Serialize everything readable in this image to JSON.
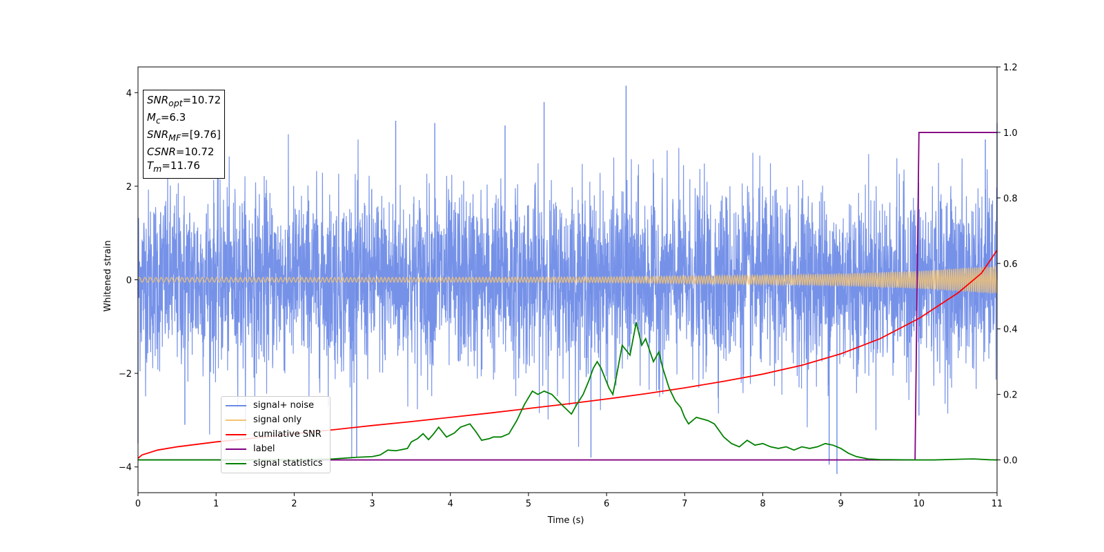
{
  "chart_data": {
    "type": "line",
    "xlabel": "Time (s)",
    "ylabel": "Whitened strain",
    "xlim": [
      0,
      11
    ],
    "ylim": [
      -4.55,
      4.55
    ],
    "y2lim": [
      -0.1,
      1.2
    ],
    "x_ticks": [
      "0",
      "1",
      "2",
      "3",
      "4",
      "5",
      "6",
      "7",
      "8",
      "9",
      "10",
      "11"
    ],
    "y_ticks": [
      "−4",
      "−2",
      "0",
      "2",
      "4"
    ],
    "y_tick_values": [
      -4,
      -2,
      0,
      2,
      4
    ],
    "y2_ticks": [
      "0.0",
      "0.2",
      "0.4",
      "0.6",
      "0.8",
      "1.0",
      "1.2"
    ],
    "y2_tick_values": [
      0.0,
      0.2,
      0.4,
      0.6,
      0.8,
      1.0,
      1.2
    ],
    "grid": false,
    "legend_position": "lower-left",
    "info_box": {
      "snr_opt_sub": "opt",
      "snr_opt_val": "=10.72",
      "mc_sub": "c",
      "mc_val": "=6.3",
      "snr_mf_sub": "MF",
      "snr_mf_val": "=[9.76]",
      "csnr_val": "=10.72",
      "tm_sub": "m",
      "tm_val": "=11.76"
    },
    "series": [
      {
        "name": "signal+ noise",
        "axis": "left",
        "color": "#6a89e6",
        "description_stats": {
          "typical_band": [
            -1.8,
            1.8
          ],
          "max": 4.1,
          "min": -4.15
        },
        "peaks": [
          [
            0.0,
            -3.5
          ],
          [
            0.6,
            -3.1
          ],
          [
            2.8,
            -3.8
          ],
          [
            3.3,
            3.4
          ],
          [
            3.8,
            3.35
          ],
          [
            4.7,
            3.3
          ],
          [
            5.2,
            3.8
          ],
          [
            5.8,
            -3.8
          ],
          [
            6.25,
            4.15
          ],
          [
            8.85,
            -3.95
          ],
          [
            8.95,
            -4.15
          ],
          [
            10.0,
            -2.9
          ],
          [
            10.85,
            3.0
          ],
          [
            11.0,
            3.35
          ]
        ]
      },
      {
        "name": "signal only",
        "axis": "left",
        "color": "#f5c372",
        "envelope": [
          [
            0,
            0.05
          ],
          [
            2,
            0.05
          ],
          [
            4,
            0.05
          ],
          [
            6,
            0.06
          ],
          [
            7,
            0.08
          ],
          [
            8,
            0.1
          ],
          [
            9,
            0.13
          ],
          [
            10,
            0.19
          ],
          [
            11,
            0.3
          ]
        ]
      },
      {
        "name": "cumilative SNR",
        "axis": "right",
        "color": "#ff0000",
        "x": [
          0,
          0.05,
          0.25,
          0.5,
          1,
          1.5,
          2,
          2.5,
          3,
          3.5,
          4,
          4.5,
          5,
          5.5,
          6,
          6.5,
          7,
          7.5,
          8,
          8.5,
          9,
          9.5,
          10,
          10.5,
          10.8,
          11
        ],
        "y": [
          0.005,
          0.015,
          0.03,
          0.04,
          0.055,
          0.067,
          0.08,
          0.092,
          0.105,
          0.117,
          0.13,
          0.143,
          0.157,
          0.171,
          0.186,
          0.202,
          0.22,
          0.24,
          0.262,
          0.289,
          0.324,
          0.37,
          0.432,
          0.51,
          0.57,
          0.64
        ]
      },
      {
        "name": "label",
        "axis": "right",
        "color": "#800080",
        "x": [
          0,
          9.95,
          10.0,
          11
        ],
        "y": [
          0,
          0,
          1.0,
          1.0
        ]
      },
      {
        "name": "signal statistics",
        "axis": "right",
        "color": "#008000",
        "x": [
          0,
          1,
          2,
          2.5,
          2.8,
          3.0,
          3.1,
          3.2,
          3.3,
          3.35,
          3.45,
          3.5,
          3.58,
          3.65,
          3.72,
          3.78,
          3.85,
          3.95,
          4.05,
          4.13,
          4.25,
          4.33,
          4.4,
          4.5,
          4.55,
          4.65,
          4.75,
          4.85,
          4.95,
          5.05,
          5.12,
          5.2,
          5.3,
          5.42,
          5.55,
          5.62,
          5.7,
          5.77,
          5.83,
          5.88,
          5.93,
          5.98,
          6.03,
          6.08,
          6.13,
          6.2,
          6.3,
          6.38,
          6.45,
          6.5,
          6.6,
          6.67,
          6.72,
          6.8,
          6.88,
          6.95,
          7.0,
          7.05,
          7.1,
          7.15,
          7.3,
          7.38,
          7.5,
          7.6,
          7.7,
          7.8,
          7.9,
          8.0,
          8.1,
          8.2,
          8.3,
          8.4,
          8.5,
          8.6,
          8.7,
          8.8,
          8.9,
          9.0,
          9.1,
          9.2,
          9.35,
          9.5,
          9.9,
          10.2,
          10.5,
          10.7,
          10.9,
          11.0
        ],
        "y": [
          0,
          0.0,
          0.0,
          0.003,
          0.008,
          0.01,
          0.015,
          0.03,
          0.028,
          0.03,
          0.035,
          0.055,
          0.065,
          0.08,
          0.062,
          0.078,
          0.1,
          0.07,
          0.082,
          0.1,
          0.11,
          0.085,
          0.06,
          0.065,
          0.07,
          0.07,
          0.08,
          0.12,
          0.17,
          0.21,
          0.2,
          0.21,
          0.2,
          0.17,
          0.14,
          0.17,
          0.2,
          0.24,
          0.28,
          0.3,
          0.28,
          0.25,
          0.22,
          0.2,
          0.26,
          0.35,
          0.32,
          0.42,
          0.35,
          0.37,
          0.3,
          0.33,
          0.28,
          0.22,
          0.18,
          0.16,
          0.13,
          0.11,
          0.12,
          0.13,
          0.12,
          0.11,
          0.07,
          0.05,
          0.04,
          0.06,
          0.045,
          0.05,
          0.04,
          0.035,
          0.04,
          0.03,
          0.04,
          0.035,
          0.04,
          0.05,
          0.045,
          0.035,
          0.02,
          0.01,
          0.003,
          0.001,
          0.0,
          0.0,
          0.002,
          0.003,
          0.0005,
          0.0
        ]
      }
    ]
  }
}
